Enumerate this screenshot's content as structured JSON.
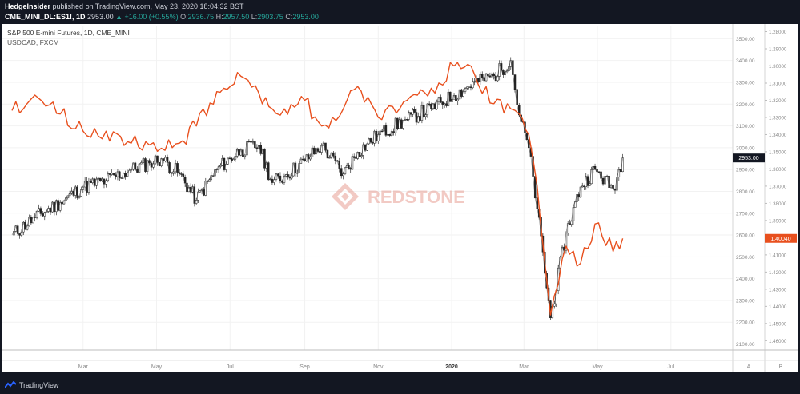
{
  "header": {
    "publisher": "HedgeInsider",
    "published_text": "published on TradingView.com, May 23, 2020 18:04:32 BST",
    "symbol": "CME_MINI_DL:ES1!, 1D",
    "price": "2953.00",
    "change": "▲ +16.00 (+0.55%)",
    "o_label": "O:",
    "o_value": "2936.75",
    "h_label": "H:",
    "h_value": "2957.50",
    "l_label": "L:",
    "l_value": "2903.75",
    "c_label": "C:",
    "c_value": "2953.00"
  },
  "legend": {
    "series1": "S&P 500 E-mini Futures, 1D, CME_MINI",
    "series2": "USDCAD, FXCM"
  },
  "watermark": "REDSTONE",
  "footer": {
    "brand": "TradingView"
  },
  "colors": {
    "sp500": "#333333",
    "usdcad": "#e8501e",
    "background": "#131722",
    "plot": "#ffffff"
  },
  "chart_data": {
    "type": "line",
    "x_ticks": [
      "Mar",
      "May",
      "Jul",
      "Sep",
      "Nov",
      "2020",
      "Mar",
      "May",
      "Jul"
    ],
    "left_axis": {
      "label": "A"
    },
    "right_axis": {
      "label": "B"
    },
    "axis1_ticks": [
      "3500.00",
      "3400.00",
      "3300.00",
      "3200.00",
      "3100.00",
      "3000.00",
      "2900.00",
      "2800.00",
      "2700.00",
      "2600.00",
      "2500.00",
      "2400.00",
      "2300.00",
      "2200.00",
      "2100.00"
    ],
    "axis2_ticks": [
      "1.28000",
      "1.29000",
      "1.30000",
      "1.31000",
      "1.32000",
      "1.33000",
      "1.34000",
      "1.35000",
      "1.36000",
      "1.37000",
      "1.38000",
      "1.39000",
      "1.40000",
      "1.41000",
      "1.42000",
      "1.43000",
      "1.44000",
      "1.45000",
      "1.46000"
    ],
    "axis1_range": [
      2080,
      3560
    ],
    "axis2_range_inverted": [
      1.2765,
      1.4645
    ],
    "last_labels": {
      "sp500": "2953.00",
      "usdcad": "1.40040"
    },
    "series": [
      {
        "name": "S&P 500 E-mini Futures, 1D, CME_MINI",
        "axis": "axis1",
        "x": [
          "2019-01-01",
          "2019-01-20",
          "2019-02-10",
          "2019-03-01",
          "2019-03-20",
          "2019-04-10",
          "2019-04-25",
          "2019-05-05",
          "2019-05-20",
          "2019-06-03",
          "2019-06-20",
          "2019-07-10",
          "2019-07-25",
          "2019-08-05",
          "2019-08-15",
          "2019-09-01",
          "2019-09-15",
          "2019-10-03",
          "2019-10-15",
          "2019-11-01",
          "2019-11-25",
          "2019-12-15",
          "2020-01-03",
          "2020-01-20",
          "2020-02-05",
          "2020-02-19",
          "2020-02-26",
          "2020-03-05",
          "2020-03-12",
          "2020-03-23",
          "2020-04-05",
          "2020-04-17",
          "2020-04-29",
          "2020-05-14",
          "2020-05-22"
        ],
        "values": [
          2600,
          2680,
          2750,
          2820,
          2850,
          2900,
          2930,
          2950,
          2880,
          2760,
          2900,
          2990,
          3010,
          2840,
          2870,
          2940,
          3010,
          2880,
          2980,
          3060,
          3130,
          3180,
          3240,
          3300,
          3330,
          3400,
          3150,
          3000,
          2720,
          2220,
          2610,
          2820,
          2900,
          2810,
          2953
        ]
      },
      {
        "name": "USDCAD, FXCM",
        "axis": "axis2",
        "x": [
          "2019-01-01",
          "2019-01-20",
          "2019-02-10",
          "2019-03-01",
          "2019-03-20",
          "2019-04-10",
          "2019-04-25",
          "2019-05-05",
          "2019-05-20",
          "2019-06-03",
          "2019-06-20",
          "2019-07-10",
          "2019-07-25",
          "2019-08-05",
          "2019-08-15",
          "2019-09-01",
          "2019-09-15",
          "2019-10-03",
          "2019-10-15",
          "2019-11-01",
          "2019-11-25",
          "2019-12-15",
          "2020-01-03",
          "2020-01-20",
          "2020-02-05",
          "2020-02-19",
          "2020-02-26",
          "2020-03-05",
          "2020-03-12",
          "2020-03-23",
          "2020-04-05",
          "2020-04-17",
          "2020-04-29",
          "2020-05-14",
          "2020-05-22"
        ],
        "values": [
          1.326,
          1.317,
          1.328,
          1.338,
          1.338,
          1.345,
          1.346,
          1.348,
          1.345,
          1.335,
          1.315,
          1.306,
          1.316,
          1.325,
          1.325,
          1.32,
          1.335,
          1.325,
          1.312,
          1.33,
          1.32,
          1.313,
          1.3,
          1.305,
          1.322,
          1.325,
          1.328,
          1.34,
          1.37,
          1.445,
          1.405,
          1.415,
          1.392,
          1.408,
          1.4004
        ]
      }
    ]
  }
}
